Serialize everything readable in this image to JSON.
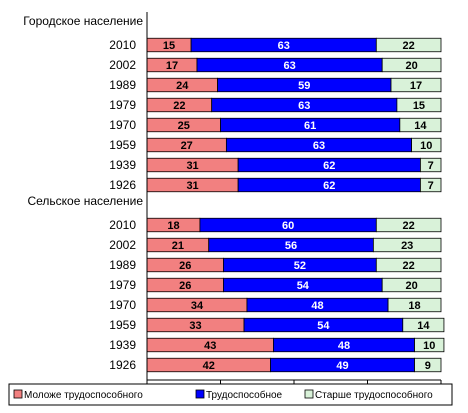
{
  "chart_data": {
    "type": "bar",
    "stacked": true,
    "orientation": "horizontal",
    "xlim": [
      0,
      100
    ],
    "grid": false,
    "legend_position": "bottom",
    "series": [
      {
        "name": "Моложе трудоспособного",
        "color": "#f28080",
        "label_color": "#000000"
      },
      {
        "name": "Трудоспособное",
        "color": "#0000ff",
        "label_color": "#ffffff"
      },
      {
        "name": "Старше трудоспособного",
        "color": "#d9f2d9",
        "label_color": "#000000"
      }
    ],
    "groups": [
      {
        "label": "Городское население",
        "rows": [
          {
            "year": "2010",
            "values": [
              15,
              63,
              22
            ]
          },
          {
            "year": "2002",
            "values": [
              17,
              63,
              20
            ]
          },
          {
            "year": "1989",
            "values": [
              24,
              59,
              17
            ]
          },
          {
            "year": "1979",
            "values": [
              22,
              63,
              15
            ]
          },
          {
            "year": "1970",
            "values": [
              25,
              61,
              14
            ]
          },
          {
            "year": "1959",
            "values": [
              27,
              63,
              10
            ]
          },
          {
            "year": "1939",
            "values": [
              31,
              62,
              7
            ]
          },
          {
            "year": "1926",
            "values": [
              31,
              62,
              7
            ]
          }
        ]
      },
      {
        "label": "Сельское население",
        "rows": [
          {
            "year": "2010",
            "values": [
              18,
              60,
              22
            ]
          },
          {
            "year": "2002",
            "values": [
              21,
              56,
              23
            ]
          },
          {
            "year": "1989",
            "values": [
              26,
              52,
              22
            ]
          },
          {
            "year": "1979",
            "values": [
              26,
              54,
              20
            ]
          },
          {
            "year": "1970",
            "values": [
              34,
              48,
              18
            ]
          },
          {
            "year": "1959",
            "values": [
              33,
              54,
              14
            ]
          },
          {
            "year": "1939",
            "values": [
              43,
              48,
              10
            ]
          },
          {
            "year": "1926",
            "values": [
              42,
              49,
              9
            ]
          }
        ]
      }
    ]
  }
}
